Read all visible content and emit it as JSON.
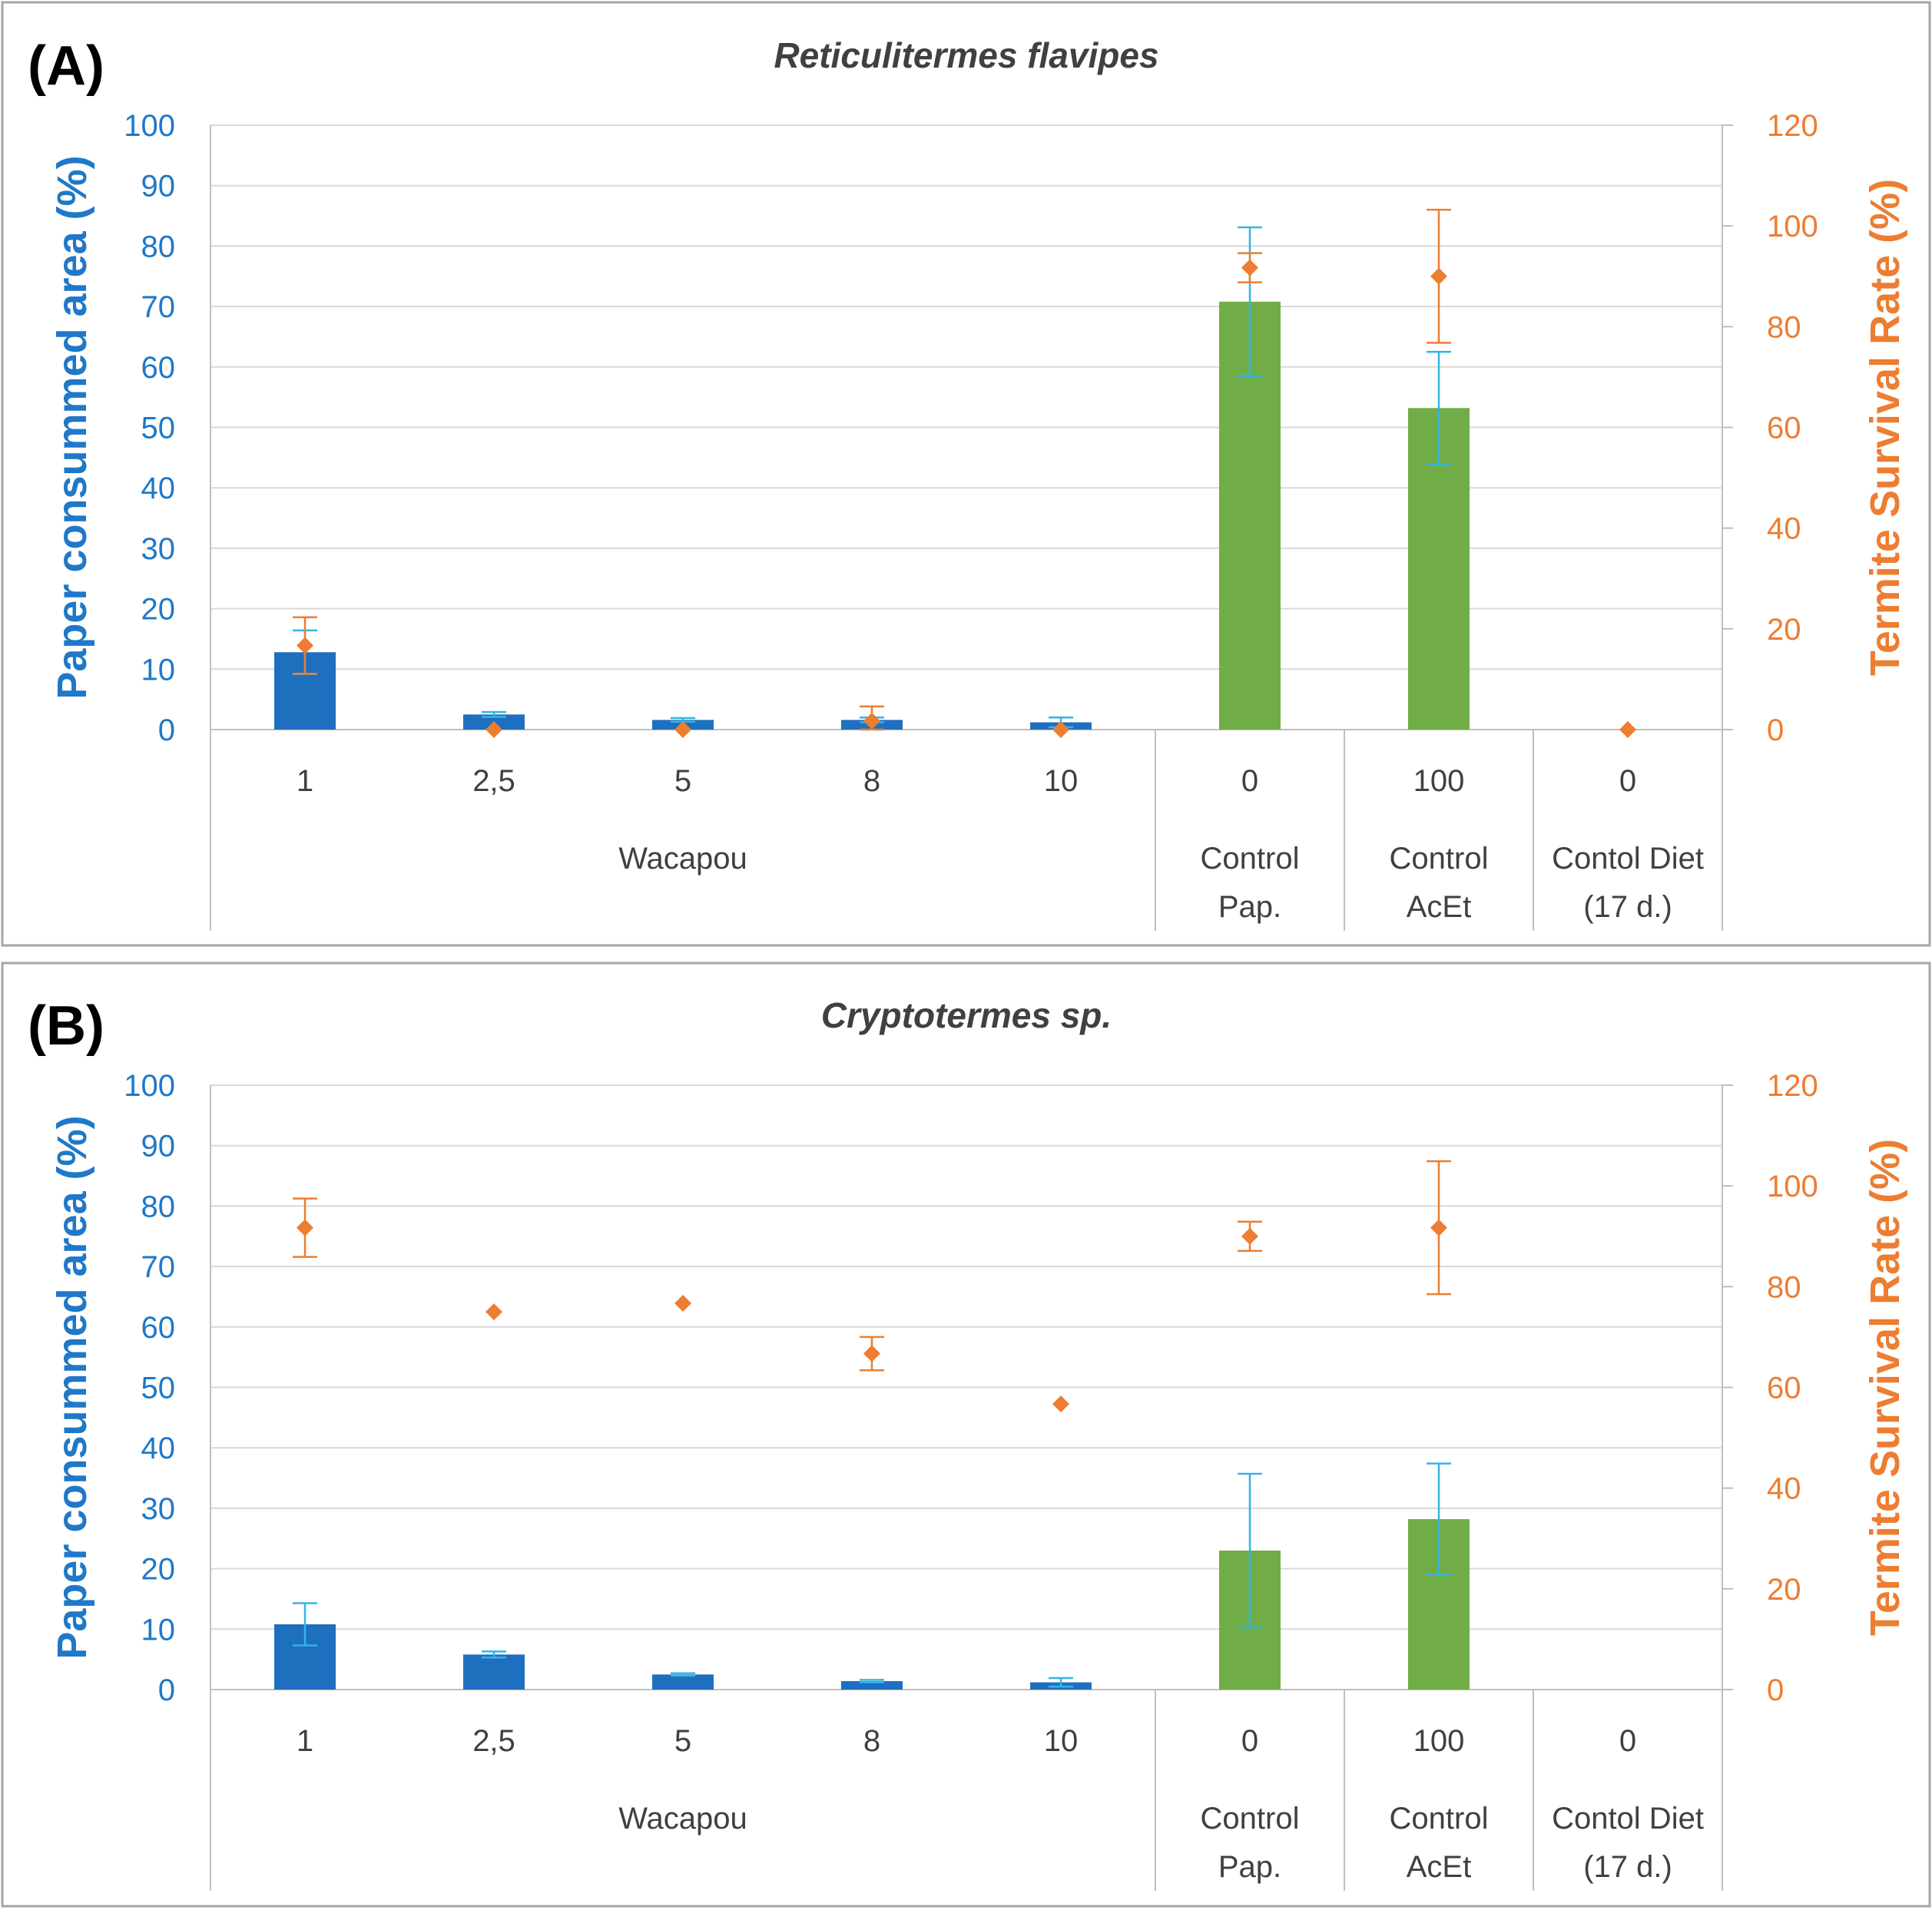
{
  "chart_data": [
    {
      "panel_label": "(A)",
      "type": "bar",
      "title": "Reticulitermes flavipes",
      "ylabel": "Paper consummed area (%)",
      "y2label": "Termite Survival Rate (%)",
      "ylim": [
        0,
        100
      ],
      "y2lim": [
        0,
        120
      ],
      "yticks": [
        "0",
        "10",
        "20",
        "30",
        "40",
        "50",
        "60",
        "70",
        "80",
        "90",
        "100"
      ],
      "y2ticks": [
        "0",
        "20",
        "40",
        "60",
        "80",
        "100",
        "120"
      ],
      "grid": true,
      "categories": [
        "1",
        "2,5",
        "5",
        "8",
        "10",
        "0",
        "100",
        "0"
      ],
      "groups": [
        {
          "label": "Wacapou",
          "span": [
            0,
            4
          ]
        },
        {
          "label": "Control Pap.",
          "lines": [
            "Control",
            "Pap."
          ],
          "span": [
            5,
            5
          ]
        },
        {
          "label": "Control AcEt",
          "lines": [
            "Control",
            "AcEt"
          ],
          "span": [
            6,
            6
          ]
        },
        {
          "label": "Contol Diet (17 d.)",
          "lines": [
            "Contol Diet",
            "(17 d.)"
          ],
          "span": [
            7,
            7
          ]
        }
      ],
      "series": [
        {
          "axis": "left",
          "kind": "bar",
          "values": [
            12.8,
            2.5,
            1.6,
            1.6,
            1.2,
            70.8,
            53.2,
            null
          ],
          "errors": [
            3.6,
            0.4,
            0.3,
            0.4,
            0.8,
            12.3,
            9.3,
            null
          ],
          "colors": [
            "#1f6fbf",
            "#1f6fbf",
            "#1f6fbf",
            "#1f6fbf",
            "#1f6fbf",
            "#70ad47",
            "#70ad47",
            "#70ad47"
          ]
        },
        {
          "axis": "right",
          "kind": "scatter",
          "marker": "diamond",
          "color": "#ed7d31",
          "values": [
            16.7,
            0,
            0,
            1.7,
            0,
            91.7,
            90,
            0
          ],
          "errors": [
            5.6,
            0,
            0,
            2.9,
            0,
            2.9,
            13.2,
            0
          ]
        }
      ]
    },
    {
      "panel_label": "(B)",
      "type": "bar",
      "title": "Cryptotermes sp.",
      "ylabel": "Paper consummed area (%)",
      "y2label": "Termite Survival Rate (%)",
      "ylim": [
        0,
        100
      ],
      "y2lim": [
        0,
        120
      ],
      "yticks": [
        "0",
        "10",
        "20",
        "30",
        "40",
        "50",
        "60",
        "70",
        "80",
        "90",
        "100"
      ],
      "y2ticks": [
        "0",
        "20",
        "40",
        "60",
        "80",
        "100",
        "120"
      ],
      "grid": true,
      "categories": [
        "1",
        "2,5",
        "5",
        "8",
        "10",
        "0",
        "100",
        "0"
      ],
      "groups": [
        {
          "label": "Wacapou",
          "span": [
            0,
            4
          ]
        },
        {
          "label": "Control Pap.",
          "lines": [
            "Control",
            "Pap."
          ],
          "span": [
            5,
            5
          ]
        },
        {
          "label": "Control AcEt",
          "lines": [
            "Control",
            "AcEt"
          ],
          "span": [
            6,
            6
          ]
        },
        {
          "label": "Contol Diet (17 d.)",
          "lines": [
            "Contol Diet",
            "(17 d.)"
          ],
          "span": [
            7,
            7
          ]
        }
      ],
      "series": [
        {
          "axis": "left",
          "kind": "bar",
          "values": [
            10.8,
            5.8,
            2.5,
            1.4,
            1.2,
            23.0,
            28.2,
            null
          ],
          "errors": [
            3.5,
            0.5,
            0.2,
            0.2,
            0.7,
            12.7,
            9.2,
            null
          ],
          "colors": [
            "#1f6fbf",
            "#1f6fbf",
            "#1f6fbf",
            "#1f6fbf",
            "#1f6fbf",
            "#70ad47",
            "#70ad47",
            "#70ad47"
          ]
        },
        {
          "axis": "right",
          "kind": "scatter",
          "marker": "diamond",
          "color": "#ed7d31",
          "values": [
            91.7,
            75.0,
            76.7,
            66.7,
            56.7,
            90.0,
            91.7,
            null
          ],
          "errors": [
            5.8,
            0,
            0,
            3.3,
            0,
            2.9,
            13.2,
            null
          ]
        }
      ]
    }
  ]
}
